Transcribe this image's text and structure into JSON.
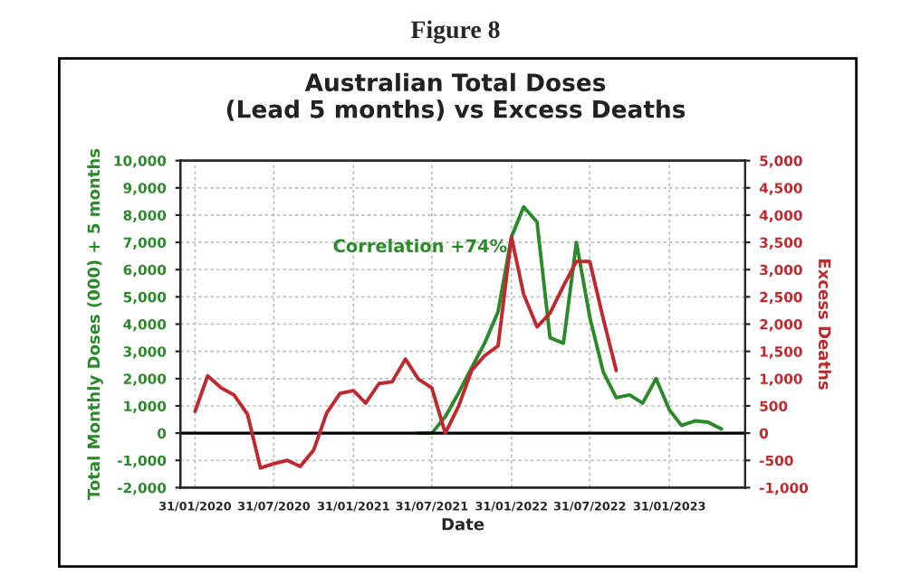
{
  "chart_data": {
    "type": "line",
    "title": "Figure 8",
    "subtitle": "Australian Total Doses\n(Lead 5 months) vs Excess Deaths",
    "xlabel": "Date",
    "ylabel": "Total Monthly Doses (000) + 5 months",
    "y2label": "Excess Deaths",
    "annotations": [
      "Correlation +74%"
    ],
    "series": [
      {
        "color": "#2a8a2a",
        "x": [
          "2021-06-30",
          "2021-07-31",
          "2021-08-31",
          "2021-09-30",
          "2021-10-31",
          "2021-11-30",
          "2021-12-31",
          "2022-01-31",
          "2022-02-28",
          "2022-03-31",
          "2022-04-30",
          "2022-05-31",
          "2022-06-30",
          "2022-07-31",
          "2022-08-31",
          "2022-09-30",
          "2022-10-31",
          "2022-11-30",
          "2022-12-31",
          "2023-01-31",
          "2023-02-28",
          "2023-03-31",
          "2023-04-30",
          "2023-05-31"
        ],
        "values": [
          0,
          0,
          600,
          1450,
          2400,
          3300,
          4460,
          7200,
          8300,
          7750,
          3500,
          3300,
          7000,
          4250,
          2250,
          1300,
          1400,
          1100,
          2000,
          850,
          280,
          450,
          400,
          150
        ]
      },
      {
        "color": "#c0282d",
        "axis": "y2",
        "x": [
          "2020-01-31",
          "2020-02-29",
          "2020-03-31",
          "2020-04-30",
          "2020-05-31",
          "2020-06-30",
          "2020-07-31",
          "2020-08-31",
          "2020-09-30",
          "2020-10-31",
          "2020-11-30",
          "2020-12-31",
          "2021-01-31",
          "2021-02-28",
          "2021-03-31",
          "2021-04-30",
          "2021-05-31",
          "2021-06-30",
          "2021-07-31",
          "2021-08-31",
          "2021-09-30",
          "2021-10-31",
          "2021-11-30",
          "2021-12-31",
          "2022-01-31",
          "2022-02-28",
          "2022-03-31",
          "2022-04-30",
          "2022-05-31",
          "2022-06-30",
          "2022-07-31",
          "2022-08-31",
          "2022-09-30"
        ],
        "values": [
          400,
          1050,
          830,
          700,
          350,
          -640,
          -560,
          -500,
          -610,
          -310,
          370,
          730,
          780,
          550,
          910,
          940,
          1360,
          990,
          830,
          0,
          480,
          1150,
          1420,
          1600,
          3600,
          2550,
          1950,
          2200,
          2700,
          3150,
          3150,
          2100,
          1150
        ]
      }
    ],
    "xlim": [
      "2019-12-28",
      "2023-07-25"
    ],
    "xticks": [
      {
        "value": "2020-01-31",
        "label": "31/01/2020"
      },
      {
        "value": "2020-07-31",
        "label": "31/07/2020"
      },
      {
        "value": "2021-01-31",
        "label": "31/01/2021"
      },
      {
        "value": "2021-07-31",
        "label": "31/07/2021"
      },
      {
        "value": "2022-01-31",
        "label": "31/01/2022"
      },
      {
        "value": "2022-07-31",
        "label": "31/07/2022"
      },
      {
        "value": "2023-01-31",
        "label": "31/01/2023"
      }
    ],
    "ylim": [
      -2000,
      10000
    ],
    "yticks": [
      {
        "value": -2000,
        "label": "-2,000"
      },
      {
        "value": -1000,
        "label": "-1,000"
      },
      0,
      {
        "value": 1000,
        "label": "1,000"
      },
      {
        "value": 2000,
        "label": "2,000"
      },
      {
        "value": 3000,
        "label": "3,000"
      },
      {
        "value": 4000,
        "label": "4,000"
      },
      {
        "value": 5000,
        "label": "5,000"
      },
      {
        "value": 6000,
        "label": "6,000"
      },
      {
        "value": 7000,
        "label": "7,000"
      },
      {
        "value": 8000,
        "label": "8,000"
      },
      {
        "value": 9000,
        "label": "9,000"
      },
      {
        "value": 10000,
        "label": "10,000"
      }
    ],
    "y2lim": [
      -1000,
      5000
    ],
    "y2ticks": [
      {
        "value": -1000,
        "label": "-1,000"
      },
      -500,
      0,
      500,
      {
        "value": 1000,
        "label": "1,000"
      },
      {
        "value": 1500,
        "label": "1,500"
      },
      {
        "value": 2000,
        "label": "2,000"
      },
      {
        "value": 2500,
        "label": "2,500"
      },
      {
        "value": 3000,
        "label": "3,000"
      },
      {
        "value": 3500,
        "label": "3,500"
      },
      {
        "value": 4000,
        "label": "4,000"
      },
      {
        "value": 4500,
        "label": "4,500"
      },
      {
        "value": 5000,
        "label": "5,000"
      }
    ],
    "ref_lines": [
      {
        "axis": "y",
        "value": 0,
        "color": "#000000"
      }
    ],
    "grid": true,
    "line_style": "solid"
  }
}
